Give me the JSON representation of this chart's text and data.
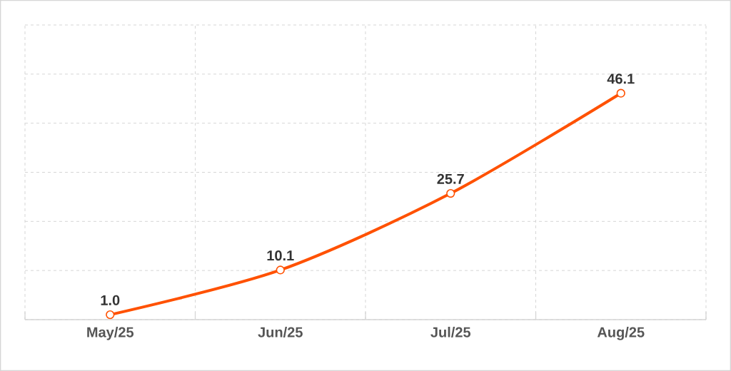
{
  "chart_data": {
    "type": "line",
    "categories": [
      "May/25",
      "Jun/25",
      "Jul/25",
      "Aug/25"
    ],
    "series": [
      {
        "color": "#ff5100",
        "values": [
          1.0,
          10.1,
          25.7,
          46.1
        ],
        "value_labels": [
          "1.0",
          "10.1",
          "25.7",
          "46.1"
        ]
      }
    ],
    "ylim": [
      0,
      60
    ],
    "yticks": [
      {
        "value": 0,
        "label": null
      },
      {
        "value": 10,
        "label": null
      },
      {
        "value": 20,
        "label": null
      },
      {
        "value": 30,
        "label": null
      },
      {
        "value": 40,
        "label": null
      },
      {
        "value": 50,
        "label": null
      },
      {
        "value": 60,
        "label": null
      }
    ],
    "tick_labels": "x",
    "grid": true,
    "marker": "circle",
    "line_style": "solid"
  }
}
